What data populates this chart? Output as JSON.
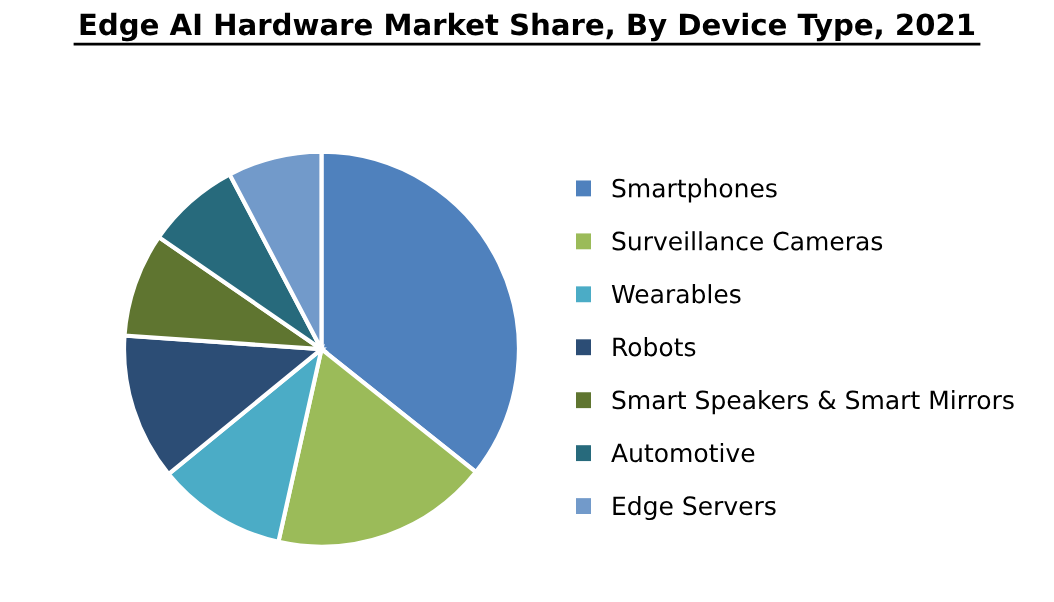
{
  "chart_data": {
    "type": "pie",
    "title": "Edge AI Hardware Market Share, By Device Type, 2021",
    "categories": [
      "Smartphones",
      "Surveillance Cameras",
      "Wearables",
      "Robots",
      "Smart Speakers & Smart Mirrors",
      "Automotive",
      "Edge Servers"
    ],
    "values": [
      35.7,
      17.8,
      10.6,
      12.0,
      8.5,
      7.7,
      7.7
    ],
    "colors": [
      "#4f81bd",
      "#9bbb59",
      "#4bacc6",
      "#2c4d75",
      "#5f7530",
      "#276a7c",
      "#729aca"
    ],
    "legend": "right"
  }
}
